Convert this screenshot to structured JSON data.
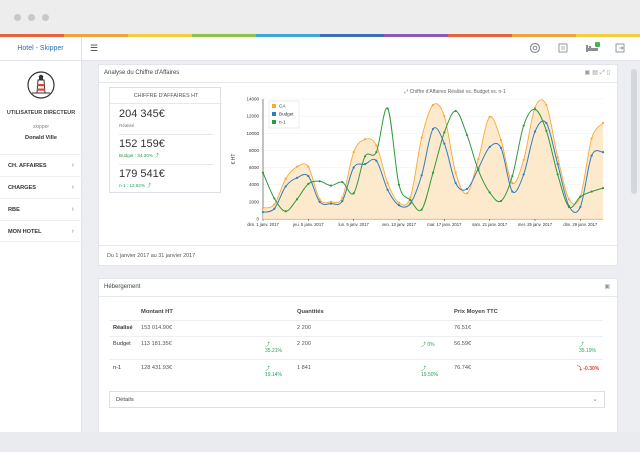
{
  "theme": {
    "rainbow": [
      "#e8623c",
      "#f0a23c",
      "#f4cc3f",
      "#8bc34a",
      "#3fa6d8",
      "#3a6fb6",
      "#8a5bb5",
      "#e8623c",
      "#f0a23c",
      "#f4cc3f"
    ],
    "accent": "#2b6fb2",
    "ca_color": "#f7a93b",
    "budget_color": "#2f7fbf",
    "n1_color": "#2f9a3c"
  },
  "header": {
    "brand": "Hotel - Skipper",
    "menu_icon": "hamburger-icon",
    "icons": [
      "lifebuoy-icon",
      "document-icon",
      "hotel-bed-icon",
      "logout-icon"
    ]
  },
  "sidebar": {
    "logo_icon": "lighthouse-icon",
    "role": "UTILISATEUR DIRECTEUR",
    "role_sub": "skipper",
    "user_name": "Donald Ville",
    "items": [
      {
        "label": "CH. AFFAIRES"
      },
      {
        "label": "CHARGES"
      },
      {
        "label": "RBE"
      },
      {
        "label": "MON HOTEL"
      }
    ]
  },
  "revenue_panel": {
    "title": "Analyse du Chiffre d'Affaires",
    "tool_icons": [
      "expand-icon",
      "table-icon",
      "fullscreen-icon",
      "export-icon"
    ],
    "kpi_title": "CHIFFRE D'AFFAIRES HT",
    "kpis": [
      {
        "value": "204 345€",
        "caption": "Réalisé"
      },
      {
        "value": "152 159€",
        "caption": "Budget : 34.30% ⤴"
      },
      {
        "value": "179 541€",
        "caption": "n-1 : 13.82% ⤴"
      }
    ],
    "footer": "Du 1 janvier 2017 au 31 janvier 2017"
  },
  "chart_data": {
    "type": "line",
    "title": "Chiffre d'Affaires Réalisé vs. Budget vs. n-1",
    "ylabel": "€ HT",
    "ylim": [
      0,
      14000
    ],
    "yticks": [
      0,
      2000,
      4000,
      6000,
      8000,
      10000,
      12000,
      14000
    ],
    "xticks": [
      "dim. 1 janv. 2017",
      "jeu. 5 janv. 2017",
      "lun. 9 janv. 2017",
      "ven. 13 janv. 2017",
      "mar. 17 janv. 2017",
      "sam. 21 janv. 2017",
      "mer. 25 janv. 2017",
      "dim. 29 janv. 2017"
    ],
    "legend": "top-left",
    "x": [
      1,
      2,
      3,
      4,
      5,
      6,
      7,
      8,
      9,
      10,
      11,
      12,
      13,
      14,
      15,
      16,
      17,
      18,
      19,
      20,
      21,
      22,
      23,
      24,
      25,
      26,
      27,
      28,
      29,
      30,
      31
    ],
    "series": [
      {
        "name": "CA",
        "values": [
          1300,
          1700,
          4700,
          6100,
          6100,
          2300,
          2000,
          2500,
          7800,
          9300,
          8600,
          4200,
          1900,
          2500,
          9500,
          13300,
          12000,
          5400,
          3000,
          7000,
          11900,
          9200,
          4200,
          6900,
          13000,
          13300,
          7200,
          2300,
          2600,
          9400,
          11200
        ]
      },
      {
        "name": "Budget",
        "values": [
          800,
          1200,
          3800,
          4800,
          5000,
          2000,
          1800,
          2100,
          6000,
          6400,
          6800,
          3400,
          1600,
          1800,
          5100,
          10500,
          8800,
          4200,
          3500,
          5900,
          8400,
          8300,
          3200,
          5200,
          10200,
          11200,
          6400,
          1500,
          1400,
          7400,
          7800
        ]
      },
      {
        "name": "n-1",
        "values": [
          5400,
          2400,
          900,
          2300,
          4100,
          4400,
          3900,
          4300,
          3000,
          7300,
          7800,
          12900,
          4000,
          2200,
          1100,
          5400,
          10100,
          12600,
          9800,
          5700,
          3100,
          2100,
          5000,
          10900,
          12800,
          10300,
          5200,
          1400,
          2600,
          3200,
          3600
        ]
      }
    ]
  },
  "hebergement": {
    "title": "Hébergement",
    "columns": [
      "Montant HT",
      "Quantités",
      "Prix Moyen TTC"
    ],
    "rows": [
      {
        "label": "Réalisé",
        "montant": "153 014.90€",
        "montant_var": "",
        "quant": "2 200",
        "quant_var": "",
        "prix": "76.51€",
        "prix_var": "",
        "prix_dir": ""
      },
      {
        "label": "Budget",
        "montant": "113 181.35€",
        "montant_var": "⤴ 35.21%",
        "quant": "2 200",
        "quant_var": "⤴ 0%",
        "prix": "56.59€",
        "prix_var": "⤴ 35.19%",
        "prix_dir": "up"
      },
      {
        "label": "n-1",
        "montant": "128 431.93€",
        "montant_var": "⤴ 19.14%",
        "quant": "1 841",
        "quant_var": "⤴ 19.50%",
        "prix": "76.74€",
        "prix_var": "⤵ -0.30%",
        "prix_dir": "down"
      }
    ],
    "details_label": "Détails"
  }
}
